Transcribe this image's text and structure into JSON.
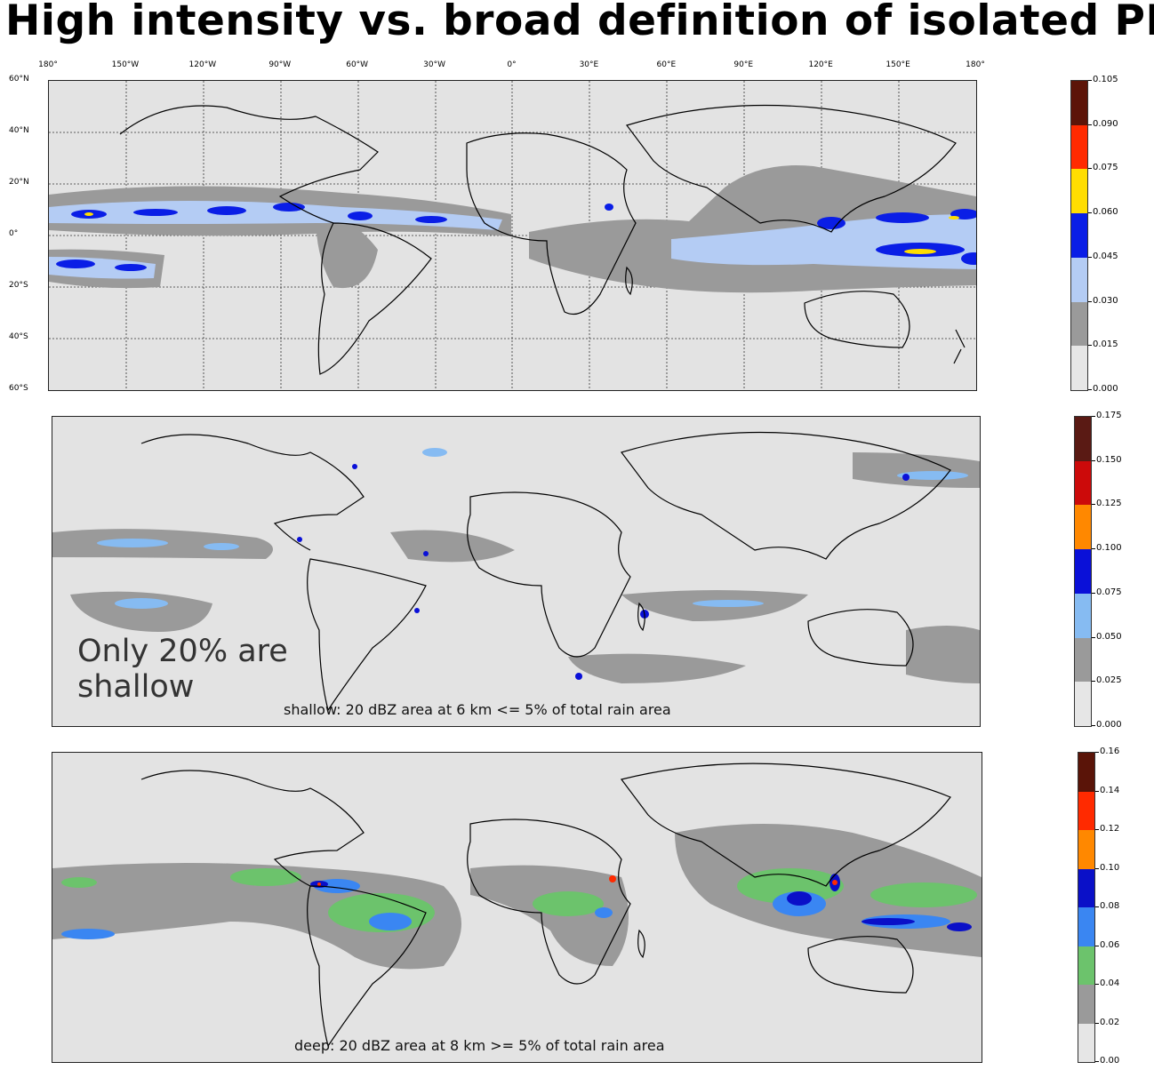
{
  "title": "High intensity vs. broad definition of isolated PFs",
  "top_map": {
    "lon_labels": [
      "180°",
      "150°W",
      "120°W",
      "90°W",
      "60°W",
      "30°W",
      "0°",
      "30°E",
      "60°E",
      "90°E",
      "120°E",
      "150°E",
      "180°"
    ],
    "lat_labels": [
      "60°N",
      "40°N",
      "20°N",
      "0°",
      "20°S",
      "40°S",
      "60°S"
    ],
    "colorbar": {
      "ticks": [
        "0.000",
        "0.015",
        "0.030",
        "0.045",
        "0.060",
        "0.075",
        "0.090",
        "0.105"
      ],
      "colors": [
        "#e6e6e6",
        "#9a9a9a",
        "#b4ccf4",
        "#0a1ee6",
        "#ffdd00",
        "#ff2a00",
        "#5c1408"
      ]
    }
  },
  "middle_map": {
    "note_line1": "Only 20% are",
    "note_line2": "shallow",
    "caption": "shallow: 20 dBZ area at 6 km <= 5% of total rain area",
    "colorbar": {
      "ticks": [
        "0.000",
        "0.025",
        "0.050",
        "0.075",
        "0.100",
        "0.125",
        "0.150",
        "0.175"
      ],
      "colors": [
        "#e6e6e6",
        "#9a9a9a",
        "#86bbf2",
        "#0a10d8",
        "#ff8800",
        "#cc0a0a",
        "#5a1a14"
      ]
    }
  },
  "bottom_map": {
    "caption": "deep: 20 dBZ area at 8 km >= 5% of total rain area",
    "colorbar": {
      "ticks": [
        "0.00",
        "0.02",
        "0.04",
        "0.06",
        "0.08",
        "0.10",
        "0.12",
        "0.14",
        "0.16"
      ],
      "colors": [
        "#e6e6e6",
        "#9a9a9a",
        "#6cc36c",
        "#3a86f2",
        "#0a10c8",
        "#ff8800",
        "#ff2a00",
        "#5a1408"
      ]
    }
  }
}
